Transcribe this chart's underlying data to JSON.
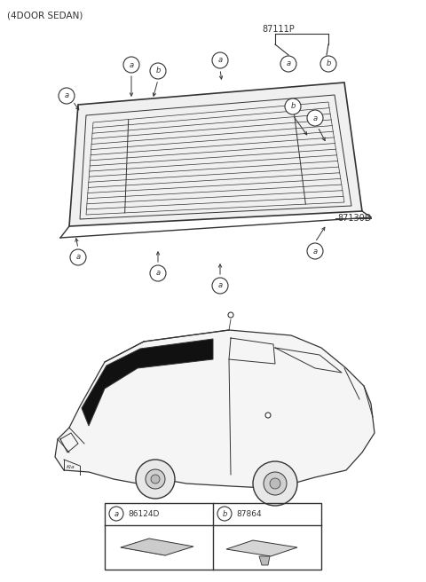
{
  "title": "(4DOOR SEDAN)",
  "bg_color": "#ffffff",
  "line_color": "#333333",
  "part_number_main": "87111P",
  "part_number_87130D": "87130D",
  "legend_a_code": "86124D",
  "legend_b_code": "87864",
  "fig_width": 4.8,
  "fig_height": 6.56,
  "dpi": 100
}
